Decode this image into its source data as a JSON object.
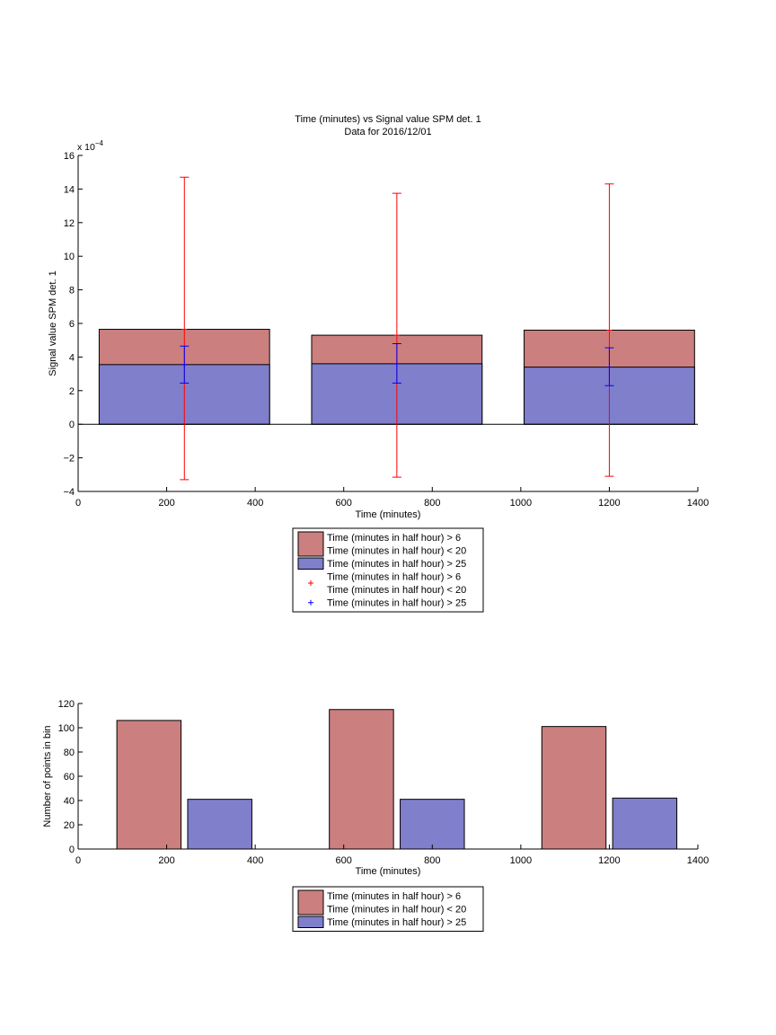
{
  "colors": {
    "series1_fill": "#cc7f7f",
    "series2_fill": "#7f7fcc",
    "errorbar_series1": "#ff0000",
    "errorbar_series2": "#0000ff",
    "axis": "#000000"
  },
  "chart_data": [
    {
      "type": "bar",
      "title": "Time (minutes) vs Signal value SPM det. 1",
      "subtitle": "Data for 2016/12/01",
      "xlabel": "Time (minutes)",
      "ylabel": "Signal value SPM det. 1",
      "ylabel_multiplier": "x 10",
      "ylabel_multiplier_exp": "−4",
      "xlim": [
        0,
        1400
      ],
      "ylim": [
        -4,
        16
      ],
      "xticks": [
        "0",
        "200",
        "400",
        "600",
        "800",
        "1000",
        "1200",
        "1400"
      ],
      "yticks": [
        "−4",
        "−2",
        "0",
        "2",
        "4",
        "6",
        "8",
        "10",
        "12",
        "14",
        "16"
      ],
      "grid": false,
      "layout": "overlaid",
      "bin_centers": [
        240,
        720,
        1200
      ],
      "bar_width": 385,
      "series": [
        {
          "name": "Time (minutes in half hour) > 6 Time (minutes in half hour) < 20",
          "values": [
            5.65,
            5.3,
            5.6
          ],
          "errorbar_center": [
            5.65,
            5.3,
            5.6
          ],
          "errorbar_low": [
            -3.3,
            -3.15,
            -3.1
          ],
          "errorbar_high": [
            14.7,
            13.75,
            14.3
          ]
        },
        {
          "name": "Time (minutes in half hour) > 25",
          "values": [
            3.55,
            3.6,
            3.4
          ],
          "errorbar_center": [
            3.55,
            3.6,
            3.4
          ],
          "errorbar_low": [
            2.45,
            2.45,
            2.3
          ],
          "errorbar_high": [
            4.65,
            4.8,
            4.55
          ]
        }
      ],
      "legend": {
        "placement": "below",
        "entries": [
          {
            "kind": "patch",
            "series": 0,
            "lines": [
              "Time (minutes in half hour) > 6",
              "Time (minutes in half hour) < 20"
            ]
          },
          {
            "kind": "patch",
            "series": 1,
            "lines": [
              "Time (minutes in half hour) > 25"
            ]
          },
          {
            "kind": "marker",
            "series": 0,
            "lines": [
              "Time (minutes in half hour) > 6",
              "Time (minutes in half hour) < 20"
            ]
          },
          {
            "kind": "marker",
            "series": 1,
            "lines": [
              "Time (minutes in half hour) > 25"
            ]
          }
        ]
      }
    },
    {
      "type": "bar",
      "xlabel": "Time (minutes)",
      "ylabel": "Number of points in bin",
      "xlim": [
        0,
        1400
      ],
      "ylim": [
        0,
        120
      ],
      "xticks": [
        "0",
        "200",
        "400",
        "600",
        "800",
        "1000",
        "1200",
        "1400"
      ],
      "yticks": [
        "0",
        "20",
        "40",
        "60",
        "80",
        "100",
        "120"
      ],
      "grid": false,
      "layout": "grouped",
      "bin_centers": [
        240,
        720,
        1200
      ],
      "bar_width": 145,
      "group_offsets": [
        -80,
        80
      ],
      "series": [
        {
          "name": "Time (minutes in half hour) > 6 Time (minutes in half hour) < 20",
          "values": [
            106,
            115,
            101
          ]
        },
        {
          "name": "Time (minutes in half hour) > 25",
          "values": [
            41,
            41,
            42
          ]
        }
      ],
      "legend": {
        "placement": "below",
        "entries": [
          {
            "kind": "patch",
            "series": 0,
            "lines": [
              "Time (minutes in half hour) > 6",
              "Time (minutes in half hour) < 20"
            ]
          },
          {
            "kind": "patch",
            "series": 1,
            "lines": [
              "Time (minutes in half hour) > 25"
            ]
          }
        ]
      }
    }
  ]
}
